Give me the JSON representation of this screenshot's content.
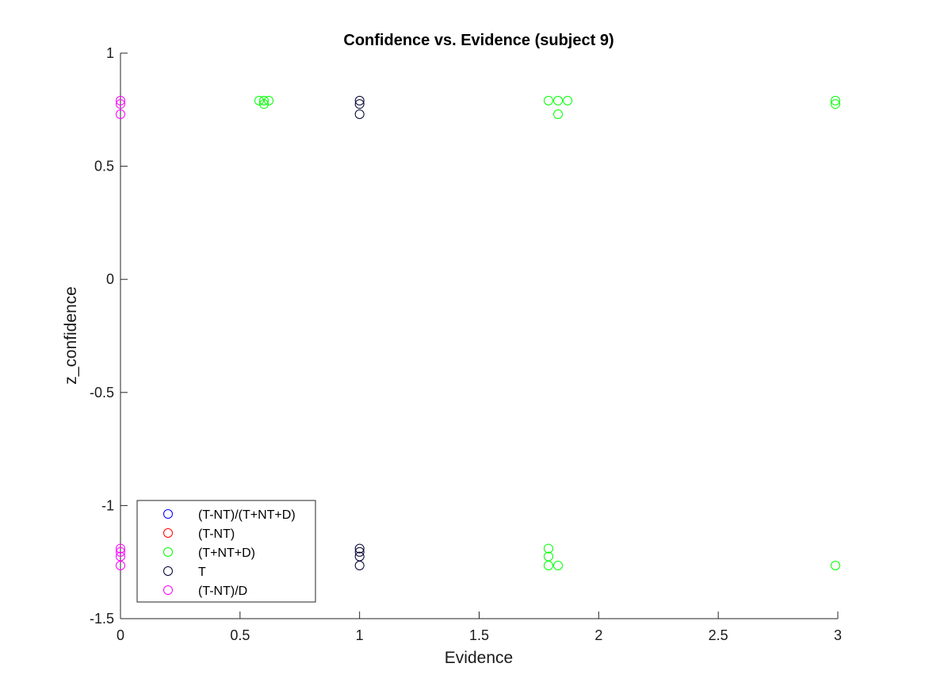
{
  "chart_data": {
    "type": "scatter",
    "title": "Confidence vs. Evidence (subject 9)",
    "xlabel": "Evidence",
    "ylabel": "z_confidence",
    "xlim": [
      0,
      3
    ],
    "ylim": [
      -1.5,
      1
    ],
    "xticks": [
      "0",
      "0.5",
      "1",
      "1.5",
      "2",
      "2.5",
      "3"
    ],
    "xtick_values": [
      0,
      0.5,
      1,
      1.5,
      2,
      2.5,
      3
    ],
    "yticks": [
      "1",
      "0.5",
      "0",
      "-0.5",
      "-1",
      "-1.5"
    ],
    "ytick_values": [
      1,
      0.5,
      0,
      -0.5,
      -1,
      -1.5
    ],
    "grid": false,
    "legend_position": "bottom-left",
    "marker": "open-circle",
    "series": [
      {
        "name": "(T-NT)/(T+NT+D)",
        "color": "#0000ff",
        "points": []
      },
      {
        "name": "(T-NT)",
        "color": "#ff0000",
        "points": []
      },
      {
        "name": "(T+NT+D)",
        "color": "#00ff00",
        "points": [
          [
            0.58,
            0.79
          ],
          [
            0.6,
            0.79
          ],
          [
            0.62,
            0.79
          ],
          [
            0.6,
            0.775
          ],
          [
            1.79,
            0.79
          ],
          [
            1.83,
            0.79
          ],
          [
            1.87,
            0.79
          ],
          [
            1.83,
            0.73
          ],
          [
            2.99,
            0.79
          ],
          [
            2.99,
            0.775
          ],
          [
            1.79,
            -1.19
          ],
          [
            1.79,
            -1.225
          ],
          [
            1.79,
            -1.265
          ],
          [
            1.83,
            -1.265
          ],
          [
            2.99,
            -1.265
          ]
        ]
      },
      {
        "name": "T",
        "color": "#000033",
        "points": [
          [
            1.0,
            0.79
          ],
          [
            1.0,
            0.775
          ],
          [
            1.0,
            0.73
          ],
          [
            1.0,
            -1.19
          ],
          [
            1.0,
            -1.205
          ],
          [
            1.0,
            -1.225
          ],
          [
            1.0,
            -1.265
          ]
        ]
      },
      {
        "name": "(T-NT)/D",
        "color": "#ff00ff",
        "points": [
          [
            0.0,
            0.79
          ],
          [
            0.0,
            0.775
          ],
          [
            0.0,
            0.73
          ],
          [
            0.0,
            -1.19
          ],
          [
            0.0,
            -1.205
          ],
          [
            0.0,
            -1.225
          ],
          [
            0.0,
            -1.265
          ]
        ]
      }
    ]
  }
}
